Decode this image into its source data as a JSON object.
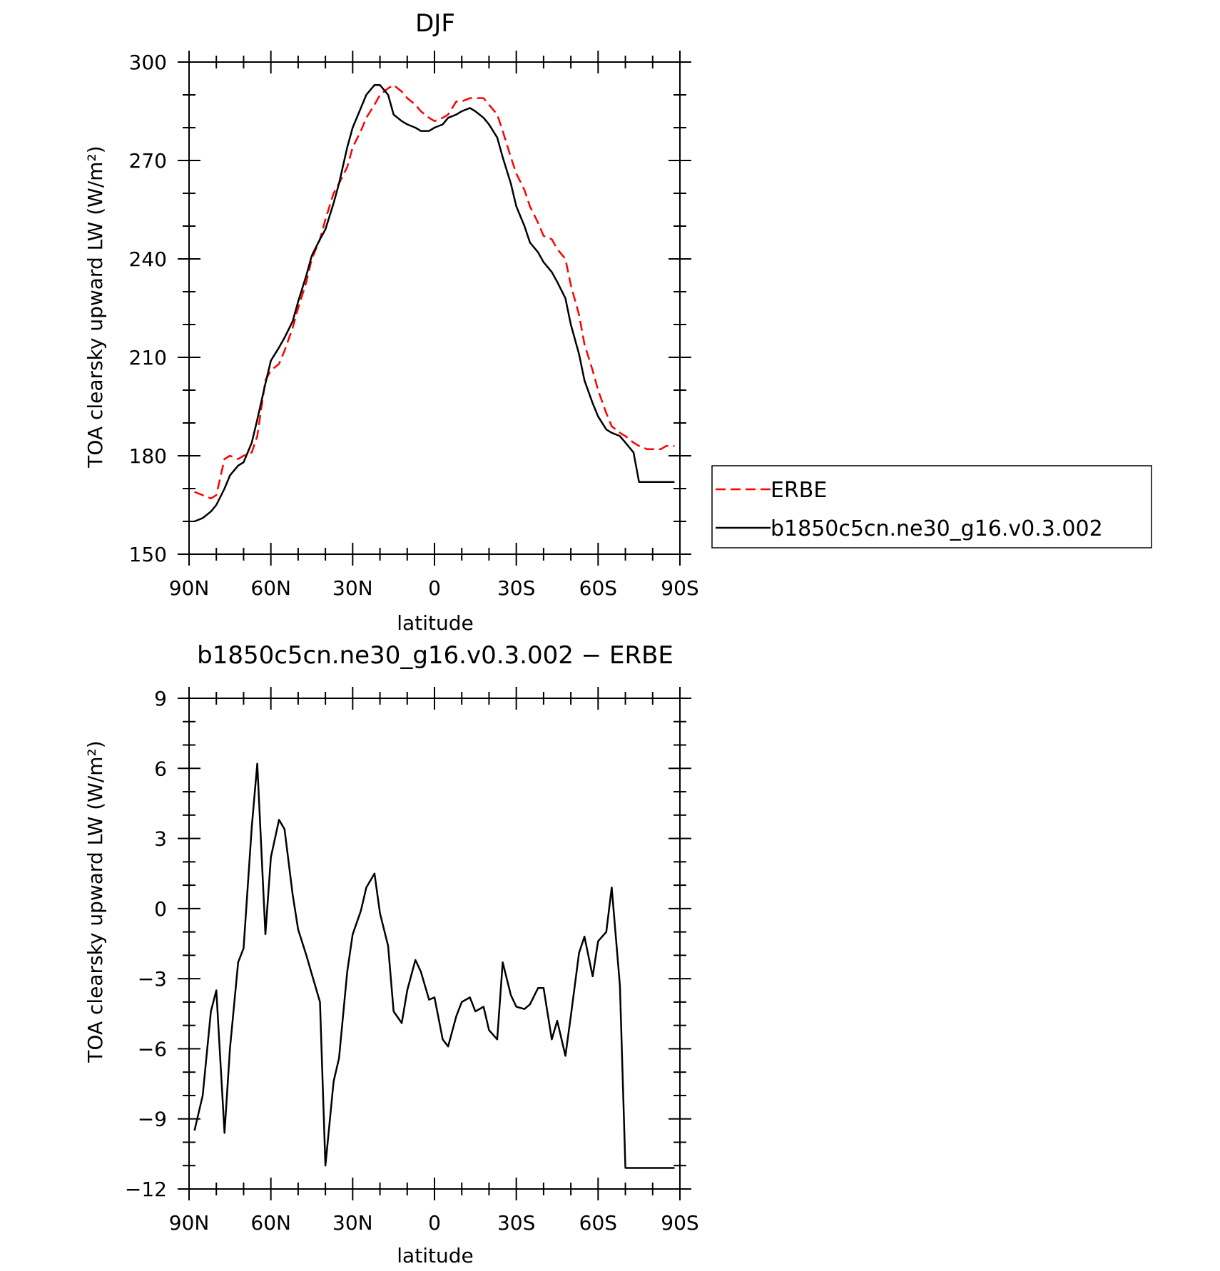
{
  "chart_data": [
    {
      "type": "line",
      "title": "DJF",
      "xlabel": "latitude",
      "ylabel": "TOA clearsky upward LW (W/m²)",
      "xlim": [
        -90,
        90
      ],
      "ylim": [
        150,
        300
      ],
      "x_ticks": [
        -90,
        -60,
        -30,
        0,
        30,
        60,
        90
      ],
      "x_tick_labels": [
        "90N",
        "60N",
        "30N",
        "0",
        "30S",
        "60S",
        "90S"
      ],
      "y_ticks": [
        150,
        180,
        210,
        240,
        270,
        300
      ],
      "y_tick_labels": [
        "150",
        "180",
        "210",
        "240",
        "270",
        "300"
      ],
      "legend_position": "right",
      "series": [
        {
          "name": "ERBE",
          "color": "#ff0000",
          "dash": "dashed",
          "x": [
            -88,
            -85,
            -82,
            -80,
            -77,
            -75,
            -72,
            -70,
            -67,
            -65,
            -62,
            -60,
            -57,
            -55,
            -52,
            -50,
            -47,
            -45,
            -42,
            -40,
            -37,
            -35,
            -32,
            -30,
            -27,
            -25,
            -22,
            -20,
            -17,
            -15,
            -12,
            -10,
            -7,
            -5,
            -2,
            0,
            3,
            5,
            8,
            10,
            13,
            15,
            18,
            20,
            23,
            25,
            28,
            30,
            33,
            35,
            38,
            40,
            43,
            45,
            48,
            50,
            53,
            55,
            58,
            60,
            63,
            65,
            68,
            70,
            73,
            75,
            78,
            80,
            83,
            85,
            88
          ],
          "values": [
            169,
            168,
            167,
            168,
            179,
            180,
            179,
            180,
            181,
            186,
            203,
            206,
            208,
            212,
            219,
            225,
            233,
            240,
            246,
            252,
            260,
            263,
            268,
            274,
            279,
            283,
            287,
            290,
            292,
            293,
            291,
            289,
            287,
            285,
            283,
            282,
            283,
            284,
            288,
            288,
            289,
            289,
            289,
            287,
            284,
            279,
            271,
            266,
            261,
            256,
            251,
            247,
            246,
            243,
            240,
            232,
            223,
            214,
            206,
            200,
            193,
            189,
            187,
            186,
            184,
            183,
            182,
            182,
            182,
            183,
            183
          ]
        },
        {
          "name": "b1850c5cn.ne30_g16.v0.3.002",
          "color": "#000000",
          "dash": "solid",
          "x": [
            -88,
            -85,
            -82,
            -80,
            -77,
            -75,
            -72,
            -70,
            -67,
            -65,
            -62,
            -60,
            -57,
            -55,
            -52,
            -50,
            -47,
            -45,
            -42,
            -40,
            -37,
            -35,
            -32,
            -30,
            -27,
            -25,
            -22,
            -20,
            -17,
            -15,
            -12,
            -10,
            -7,
            -5,
            -2,
            0,
            3,
            5,
            8,
            10,
            13,
            15,
            18,
            20,
            23,
            25,
            28,
            30,
            33,
            35,
            38,
            40,
            43,
            45,
            48,
            50,
            53,
            55,
            58,
            60,
            63,
            65,
            68,
            70,
            73,
            75,
            78,
            80,
            83,
            85,
            88
          ],
          "values": [
            160,
            161,
            163,
            165,
            170,
            174,
            177,
            178,
            184,
            191,
            202,
            209,
            213,
            216,
            221,
            227,
            235,
            241,
            246,
            249,
            257,
            263,
            274,
            280,
            286,
            290,
            293,
            293,
            290,
            284,
            282,
            281,
            280,
            279,
            279,
            280,
            281,
            283,
            284,
            285,
            286,
            285,
            283,
            281,
            277,
            271,
            263,
            256,
            250,
            245,
            242,
            239,
            236,
            233,
            228,
            220,
            211,
            203,
            196,
            192,
            188,
            187,
            186,
            184,
            181,
            172,
            172,
            172,
            172,
            172,
            172
          ]
        }
      ]
    },
    {
      "type": "line",
      "title": "b1850c5cn.ne30_g16.v0.3.002 − ERBE",
      "xlabel": "latitude",
      "ylabel": "TOA clearsky upward LW (W/m²)",
      "xlim": [
        -90,
        90
      ],
      "ylim": [
        -12,
        9
      ],
      "x_ticks": [
        -90,
        -60,
        -30,
        0,
        30,
        60,
        90
      ],
      "x_tick_labels": [
        "90N",
        "60N",
        "30N",
        "0",
        "30S",
        "60S",
        "90S"
      ],
      "y_ticks": [
        -12,
        -9,
        -6,
        -3,
        0,
        3,
        6,
        9
      ],
      "y_tick_labels": [
        "−12",
        "−9",
        "−6",
        "−3",
        "0",
        "3",
        "6",
        "9"
      ],
      "series": [
        {
          "color": "#000000",
          "dash": "solid",
          "x": [
            -88,
            -85,
            -82,
            -80,
            -77,
            -75,
            -72,
            -70,
            -67,
            -65,
            -62,
            -60,
            -57,
            -55,
            -52,
            -50,
            -47,
            -45,
            -42,
            -40,
            -37,
            -35,
            -32,
            -30,
            -27,
            -25,
            -22,
            -20,
            -17,
            -15,
            -12,
            -10,
            -7,
            -5,
            -2,
            0,
            3,
            5,
            8,
            10,
            13,
            15,
            18,
            20,
            23,
            25,
            28,
            30,
            33,
            35,
            38,
            40,
            43,
            45,
            48,
            50,
            53,
            55,
            58,
            60,
            63,
            65,
            68,
            70,
            73,
            75,
            78,
            80,
            83,
            85,
            88
          ],
          "values": [
            -9.5,
            -8.0,
            -4.4,
            -3.5,
            -9.6,
            -6.0,
            -2.3,
            -1.7,
            3.5,
            6.2,
            -1.1,
            2.2,
            3.8,
            3.4,
            0.6,
            -0.9,
            -2.0,
            -2.8,
            -4.0,
            -11.0,
            -7.4,
            -6.4,
            -2.7,
            -1.1,
            -0.1,
            0.9,
            1.5,
            -0.2,
            -1.6,
            -4.4,
            -4.9,
            -3.5,
            -2.2,
            -2.7,
            -3.9,
            -3.8,
            -5.6,
            -5.9,
            -4.6,
            -4.0,
            -3.8,
            -4.4,
            -4.2,
            -5.2,
            -5.6,
            -2.3,
            -3.7,
            -4.2,
            -4.3,
            -4.1,
            -3.4,
            -3.4,
            -5.6,
            -4.8,
            -6.3,
            -4.6,
            -1.9,
            -1.2,
            -2.9,
            -1.4,
            -1.0,
            0.9,
            -3.3,
            -11.1,
            -11.1,
            -11.1,
            -11.1,
            -11.1,
            -11.1,
            -11.1,
            -11.1
          ]
        }
      ]
    }
  ]
}
